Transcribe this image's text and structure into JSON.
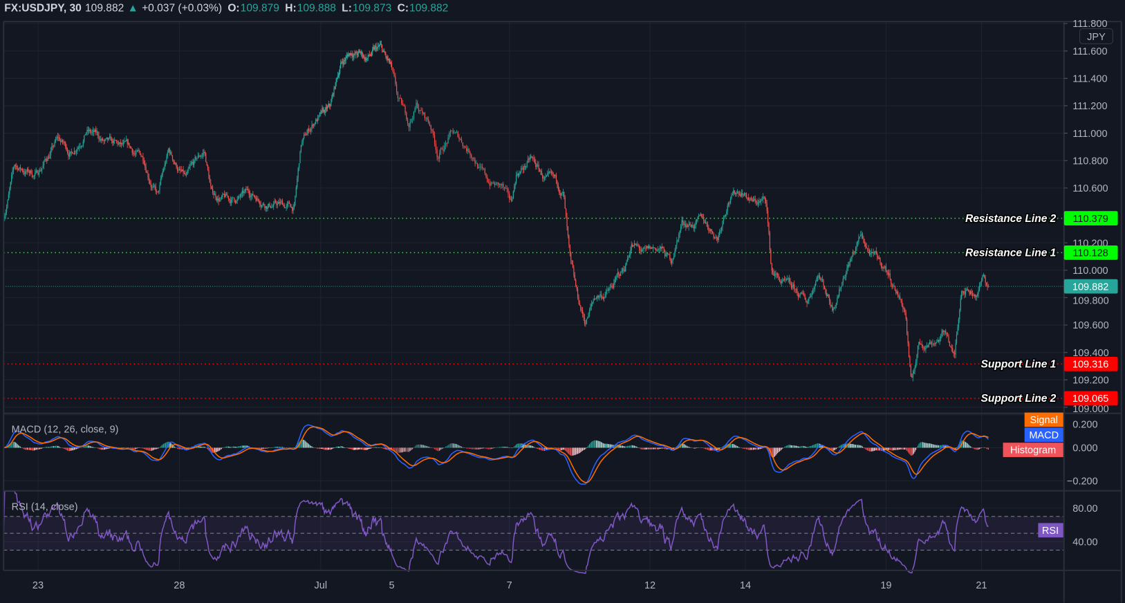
{
  "header": {
    "symbol": "FX:USDJPY, 30",
    "last": "109.882",
    "arrow": "▲",
    "change": "+0.037 (+0.03%)",
    "o_label": "O:",
    "o": "109.879",
    "h_label": "H:",
    "h": "109.888",
    "l_label": "L:",
    "l": "109.873",
    "c_label": "C:",
    "c": "109.882"
  },
  "colors": {
    "background": "#131722",
    "up": "#26a69a",
    "down": "#ef5350",
    "resistance": "#00ff00",
    "support": "#ff0000",
    "macd": "#2962ff",
    "signal": "#ff6d00",
    "rsi": "#7e57c2"
  },
  "price_scale": {
    "currency": "JPY",
    "ticks": [
      "111.800",
      "111.600",
      "111.400",
      "111.200",
      "111.000",
      "110.800",
      "110.600",
      "110.200",
      "110.000",
      "109.800",
      "109.600",
      "109.400",
      "109.200",
      "109.000"
    ]
  },
  "levels": [
    {
      "name": "Resistance Line 2",
      "value": "110.379",
      "kind": "resistance"
    },
    {
      "name": "Resistance Line 1",
      "value": "110.128",
      "kind": "resistance"
    },
    {
      "name": "Support Line 1",
      "value": "109.316",
      "kind": "support"
    },
    {
      "name": "Support Line 2",
      "value": "109.065",
      "kind": "support"
    }
  ],
  "current_price": "109.882",
  "macd": {
    "title": "MACD (12, 26, close, 9)",
    "ticks": [
      "0.200",
      "0.000",
      "−0.200"
    ],
    "legend": [
      "Signal",
      "MACD",
      "Histogram"
    ]
  },
  "rsi": {
    "title": "RSI (14, close)",
    "ticks": [
      "80.00",
      "40.00"
    ],
    "legend": "RSI",
    "bands": [
      30,
      50,
      70
    ]
  },
  "time_axis": {
    "ticks": [
      "23",
      "28",
      "Jul",
      "5",
      "7",
      "12",
      "14",
      "19",
      "21"
    ]
  },
  "chart_data": {
    "type": "candlestick",
    "symbol": "FX:USDJPY",
    "interval": "30",
    "ylim": [
      109.0,
      111.8
    ],
    "grid": true,
    "x_ticks": [
      "23",
      "28",
      "Jul",
      "5",
      "7",
      "12",
      "14",
      "19",
      "21"
    ],
    "close_path": [
      [
        "2021-06-22T06:30",
        110.4
      ],
      [
        "2021-06-22T12:00",
        110.75
      ],
      [
        "2021-06-22T23:00",
        110.7
      ],
      [
        "2021-06-23T10:00",
        110.95
      ],
      [
        "2021-06-23T17:00",
        110.85
      ],
      [
        "2021-06-24T00:30",
        111.05
      ],
      [
        "2021-06-24T11:30",
        110.9
      ],
      [
        "2021-06-24T22:00",
        110.85
      ],
      [
        "2021-06-25T06:00",
        110.8
      ],
      [
        "2021-06-25T13:00",
        110.55
      ],
      [
        "2021-06-25T18:30",
        110.85
      ],
      [
        "2021-06-28T03:30",
        110.65
      ],
      [
        "2021-06-28T12:45",
        110.85
      ],
      [
        "2021-06-28T16:30",
        110.55
      ],
      [
        "2021-06-29T01:30",
        110.5
      ],
      [
        "2021-06-29T12:30",
        110.55
      ],
      [
        "2021-06-29T23:30",
        110.5
      ],
      [
        "2021-06-30T10:30",
        110.45
      ],
      [
        "2021-06-30T14:00",
        110.9
      ],
      [
        "2021-06-30T21:30",
        111.1
      ],
      [
        "2021-07-01T06:15",
        111.15
      ],
      [
        "2021-07-01T13:30",
        111.5
      ],
      [
        "2021-07-01T21:00",
        111.6
      ],
      [
        "2021-07-02T06:30",
        111.55
      ],
      [
        "2021-07-02T16:15",
        111.6
      ],
      [
        "2021-07-02T23:30",
        111.45
      ],
      [
        "2021-07-05T02:30",
        111.2
      ],
      [
        "2021-07-05T07:00",
        111.05
      ],
      [
        "2021-07-05T10:00",
        111.2
      ],
      [
        "2021-07-05T16:00",
        111.05
      ],
      [
        "2021-07-05T18:45",
        110.85
      ],
      [
        "2021-07-06T00:30",
        111.0
      ],
      [
        "2021-07-06T09:30",
        110.85
      ],
      [
        "2021-07-06T15:00",
        110.65
      ],
      [
        "2021-07-06T21:00",
        110.6
      ],
      [
        "2021-07-07T00:45",
        110.45
      ],
      [
        "2021-07-07T03:40",
        110.7
      ],
      [
        "2021-07-07T11:00",
        110.8
      ],
      [
        "2021-07-07T18:20",
        110.65
      ],
      [
        "2021-07-08T03:40",
        110.55
      ],
      [
        "2021-07-08T07:15",
        110.0
      ],
      [
        "2021-07-08T10:50",
        109.75
      ],
      [
        "2021-07-08T14:40",
        109.6
      ],
      [
        "2021-07-08T20:10",
        109.8
      ],
      [
        "2021-07-09T03:30",
        109.85
      ],
      [
        "2021-07-09T10:50",
        110.0
      ],
      [
        "2021-07-09T14:30",
        110.2
      ],
      [
        "2021-07-09T21:50",
        110.1
      ],
      [
        "2021-07-12T05:00",
        110.15
      ],
      [
        "2021-07-12T10:30",
        110.05
      ],
      [
        "2021-07-12T16:00",
        110.35
      ],
      [
        "2021-07-13T02:40",
        110.35
      ],
      [
        "2021-07-13T10:00",
        110.25
      ],
      [
        "2021-07-13T15:20",
        110.55
      ],
      [
        "2021-07-13T22:30",
        110.6
      ],
      [
        "2021-07-14T04:00",
        110.5
      ],
      [
        "2021-07-14T10:40",
        110.5
      ],
      [
        "2021-07-14T13:15",
        110.0
      ],
      [
        "2021-07-14T22:20",
        109.85
      ],
      [
        "2021-07-15T07:40",
        109.75
      ],
      [
        "2021-07-15T13:10",
        110.0
      ],
      [
        "2021-07-15T20:30",
        109.75
      ],
      [
        "2021-07-16T03:50",
        110.05
      ],
      [
        "2021-07-16T11:10",
        110.25
      ],
      [
        "2021-07-16T16:40",
        110.1
      ],
      [
        "2021-07-19T00:00",
        110.0
      ],
      [
        "2021-07-19T05:25",
        109.85
      ],
      [
        "2021-07-19T09:45",
        109.7
      ],
      [
        "2021-07-19T12:40",
        109.15
      ],
      [
        "2021-07-19T16:15",
        109.45
      ],
      [
        "2021-07-19T23:30",
        109.5
      ],
      [
        "2021-07-20T06:40",
        109.55
      ],
      [
        "2021-07-20T10:20",
        109.35
      ],
      [
        "2021-07-20T14:00",
        109.9
      ],
      [
        "2021-07-20T21:10",
        109.85
      ],
      [
        "2021-07-21T00:45",
        109.95
      ],
      [
        "2021-07-21T03:30",
        109.882
      ]
    ],
    "indicators": [
      {
        "name": "MACD",
        "params": [
          12,
          26,
          "close",
          9
        ],
        "ylim": [
          -0.2,
          0.2
        ]
      },
      {
        "name": "RSI",
        "params": [
          14,
          "close"
        ],
        "ylim": [
          20,
          90
        ]
      }
    ]
  }
}
